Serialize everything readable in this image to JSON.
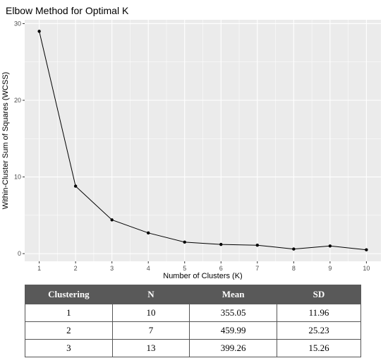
{
  "chart_data": {
    "type": "line",
    "title": "Elbow Method for Optimal K",
    "xlabel": "Number of Clusters (K)",
    "ylabel": "Within-Cluster Sum of Squares (WCSS)",
    "x": [
      1,
      2,
      3,
      4,
      5,
      6,
      7,
      8,
      9,
      10
    ],
    "y": [
      29.0,
      8.8,
      4.4,
      2.7,
      1.5,
      1.2,
      1.1,
      0.6,
      1.0,
      0.5
    ],
    "xlim": [
      0.6,
      10.4
    ],
    "ylim": [
      -1.0,
      30.5
    ],
    "xticks": [
      "1",
      "2",
      "3",
      "4",
      "5",
      "6",
      "7",
      "8",
      "9",
      "10"
    ],
    "yticks": [
      0,
      10,
      20,
      30
    ],
    "grid": true,
    "colors": {
      "panel": "#ebebeb",
      "grid": "#ffffff",
      "line": "#000000"
    }
  },
  "table": {
    "headers": [
      "Clustering",
      "N",
      "Mean",
      "SD"
    ],
    "rows": [
      [
        "1",
        "10",
        "355.05",
        "11.96"
      ],
      [
        "2",
        "7",
        "459.99",
        "25.23"
      ],
      [
        "3",
        "13",
        "399.26",
        "15.26"
      ]
    ],
    "header_bg": "#595959"
  }
}
